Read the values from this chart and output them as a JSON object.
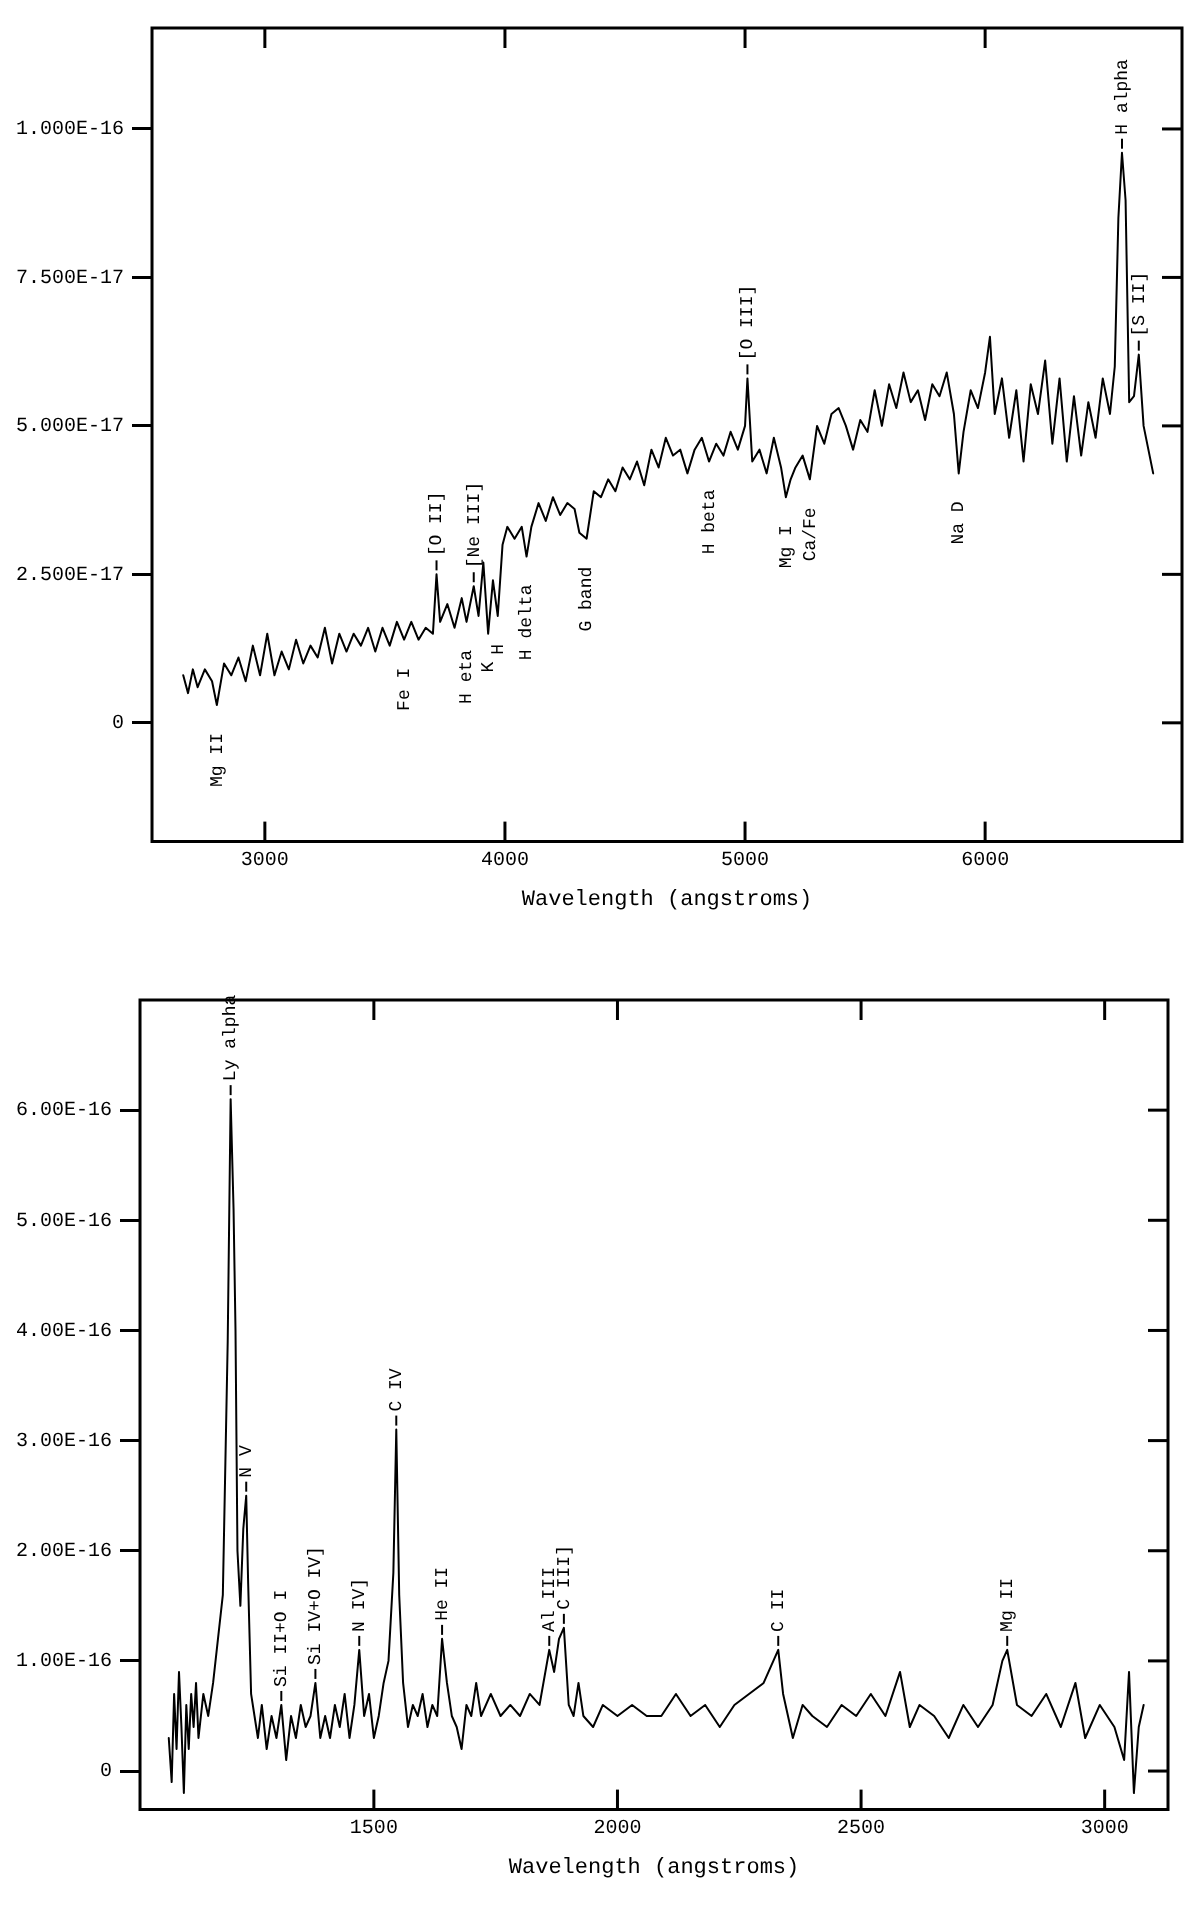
{
  "chart_data": [
    {
      "type": "line",
      "xlabel": "Wavelength (angstroms)",
      "xlim": [
        2530,
        6820
      ],
      "xticks": [
        3000,
        4000,
        5000,
        6000
      ],
      "ylim": [
        -2e-17,
        1.17e-16
      ],
      "yticks": [
        {
          "value": 0,
          "label": "0"
        },
        {
          "value": 2.5e-17,
          "label": "2.500E-17"
        },
        {
          "value": 5e-17,
          "label": "5.000E-17"
        },
        {
          "value": 7.5e-17,
          "label": "7.500E-17"
        },
        {
          "value": 1e-16,
          "label": "1.000E-16"
        }
      ],
      "grid": false,
      "legend": false,
      "series": [
        {
          "color": "#000000",
          "x": [
            2660,
            2680,
            2700,
            2720,
            2750,
            2780,
            2800,
            2830,
            2860,
            2890,
            2920,
            2950,
            2980,
            3010,
            3040,
            3070,
            3100,
            3130,
            3160,
            3190,
            3220,
            3250,
            3280,
            3310,
            3340,
            3370,
            3400,
            3430,
            3460,
            3490,
            3520,
            3550,
            3580,
            3610,
            3640,
            3670,
            3700,
            3715,
            3730,
            3760,
            3790,
            3820,
            3840,
            3870,
            3890,
            3910,
            3930,
            3950,
            3970,
            3990,
            4010,
            4040,
            4070,
            4090,
            4110,
            4140,
            4170,
            4200,
            4230,
            4260,
            4290,
            4310,
            4340,
            4370,
            4400,
            4430,
            4460,
            4490,
            4520,
            4550,
            4580,
            4610,
            4640,
            4670,
            4700,
            4730,
            4760,
            4790,
            4820,
            4850,
            4880,
            4910,
            4940,
            4970,
            5000,
            5010,
            5030,
            5060,
            5090,
            5120,
            5150,
            5170,
            5190,
            5210,
            5240,
            5270,
            5300,
            5330,
            5360,
            5390,
            5420,
            5450,
            5480,
            5510,
            5540,
            5570,
            5600,
            5630,
            5660,
            5690,
            5720,
            5750,
            5780,
            5810,
            5840,
            5870,
            5890,
            5910,
            5940,
            5970,
            6000,
            6020,
            6040,
            6070,
            6100,
            6130,
            6160,
            6190,
            6220,
            6250,
            6280,
            6310,
            6340,
            6370,
            6400,
            6430,
            6460,
            6490,
            6520,
            6540,
            6555,
            6570,
            6585,
            6600,
            6620,
            6640,
            6660,
            6680,
            6700
          ],
          "values": [
            8e-18,
            5e-18,
            9e-18,
            6e-18,
            9e-18,
            7e-18,
            3e-18,
            1e-17,
            8e-18,
            1.1e-17,
            7e-18,
            1.3e-17,
            8e-18,
            1.5e-17,
            8e-18,
            1.2e-17,
            9e-18,
            1.4e-17,
            1e-17,
            1.3e-17,
            1.1e-17,
            1.6e-17,
            1e-17,
            1.5e-17,
            1.2e-17,
            1.5e-17,
            1.3e-17,
            1.6e-17,
            1.2e-17,
            1.6e-17,
            1.3e-17,
            1.7e-17,
            1.4e-17,
            1.7e-17,
            1.4e-17,
            1.6e-17,
            1.5e-17,
            2.5e-17,
            1.7e-17,
            2e-17,
            1.6e-17,
            2.1e-17,
            1.7e-17,
            2.3e-17,
            1.8e-17,
            2.7e-17,
            1.5e-17,
            2.4e-17,
            1.8e-17,
            3e-17,
            3.3e-17,
            3.1e-17,
            3.3e-17,
            2.8e-17,
            3.3e-17,
            3.7e-17,
            3.4e-17,
            3.8e-17,
            3.5e-17,
            3.7e-17,
            3.6e-17,
            3.2e-17,
            3.1e-17,
            3.9e-17,
            3.8e-17,
            4.1e-17,
            3.9e-17,
            4.3e-17,
            4.1e-17,
            4.4e-17,
            4e-17,
            4.6e-17,
            4.3e-17,
            4.8e-17,
            4.5e-17,
            4.6e-17,
            4.2e-17,
            4.6e-17,
            4.8e-17,
            4.4e-17,
            4.7e-17,
            4.5e-17,
            4.9e-17,
            4.6e-17,
            5e-17,
            5.8e-17,
            4.4e-17,
            4.6e-17,
            4.2e-17,
            4.8e-17,
            4.3e-17,
            3.8e-17,
            4.1e-17,
            4.3e-17,
            4.5e-17,
            4.1e-17,
            5e-17,
            4.7e-17,
            5.2e-17,
            5.3e-17,
            5e-17,
            4.6e-17,
            5.1e-17,
            4.9e-17,
            5.6e-17,
            5e-17,
            5.7e-17,
            5.3e-17,
            5.9e-17,
            5.4e-17,
            5.6e-17,
            5.1e-17,
            5.7e-17,
            5.5e-17,
            5.9e-17,
            5.2e-17,
            4.2e-17,
            4.9e-17,
            5.6e-17,
            5.3e-17,
            5.9e-17,
            6.5e-17,
            5.2e-17,
            5.8e-17,
            4.8e-17,
            5.6e-17,
            4.4e-17,
            5.7e-17,
            5.2e-17,
            6.1e-17,
            4.7e-17,
            5.8e-17,
            4.4e-17,
            5.5e-17,
            4.5e-17,
            5.4e-17,
            4.8e-17,
            5.8e-17,
            5.2e-17,
            6e-17,
            8.5e-17,
            9.6e-17,
            8.8e-17,
            5.4e-17,
            5.5e-17,
            6.2e-17,
            5e-17,
            4.6e-17,
            4.2e-17
          ]
        }
      ],
      "annotations": [
        {
          "text": "Mg II",
          "x": 2800,
          "y": 3e-18
        },
        {
          "text": "Fe I",
          "x": 3580,
          "y": 1.4e-17
        },
        {
          "text": "[O II]",
          "x": 3715,
          "y": 2.5e-17
        },
        {
          "text": "H eta",
          "x": 3840,
          "y": 1.7e-17
        },
        {
          "text": "[Ne III]",
          "x": 3870,
          "y": 2.3e-17
        },
        {
          "text": "K",
          "x": 3930,
          "y": 1.5e-17
        },
        {
          "text": "H",
          "x": 3970,
          "y": 1.8e-17
        },
        {
          "text": "H delta",
          "x": 4090,
          "y": 2.8e-17
        },
        {
          "text": "G band",
          "x": 4340,
          "y": 3.1e-17
        },
        {
          "text": "H beta",
          "x": 4850,
          "y": 4.4e-17
        },
        {
          "text": "[O III]",
          "x": 5010,
          "y": 5.8e-17
        },
        {
          "text": "Mg I",
          "x": 5170,
          "y": 3.8e-17
        },
        {
          "text": "Ca/Fe",
          "x": 5270,
          "y": 4.1e-17
        },
        {
          "text": "Na D",
          "x": 5890,
          "y": 4.2e-17
        },
        {
          "text": "H alpha",
          "x": 6570,
          "y": 9.6e-17
        },
        {
          "text": "[S II]",
          "x": 6640,
          "y": 6.2e-17
        }
      ]
    },
    {
      "type": "line",
      "xlabel": "Wavelength (angstroms)",
      "xlim": [
        1020,
        3130
      ],
      "xticks": [
        1500,
        2000,
        2500,
        3000
      ],
      "ylim": [
        -3.5e-17,
        7e-16
      ],
      "yticks": [
        {
          "value": 0,
          "label": "0"
        },
        {
          "value": 1e-16,
          "label": "1.00E-16"
        },
        {
          "value": 2e-16,
          "label": "2.00E-16"
        },
        {
          "value": 3e-16,
          "label": "3.00E-16"
        },
        {
          "value": 4e-16,
          "label": "4.00E-16"
        },
        {
          "value": 5e-16,
          "label": "5.00E-16"
        },
        {
          "value": 6e-16,
          "label": "6.00E-16"
        }
      ],
      "grid": false,
      "legend": false,
      "series": [
        {
          "color": "#000000",
          "x": [
            1079,
            1085,
            1090,
            1095,
            1100,
            1105,
            1110,
            1115,
            1120,
            1125,
            1130,
            1135,
            1140,
            1150,
            1160,
            1170,
            1180,
            1190,
            1200,
            1206,
            1212,
            1216,
            1220,
            1226,
            1232,
            1238,
            1242,
            1248,
            1255,
            1262,
            1270,
            1280,
            1290,
            1300,
            1310,
            1320,
            1330,
            1340,
            1350,
            1360,
            1370,
            1380,
            1390,
            1400,
            1410,
            1420,
            1430,
            1440,
            1450,
            1460,
            1470,
            1480,
            1490,
            1500,
            1510,
            1520,
            1530,
            1540,
            1546,
            1552,
            1560,
            1570,
            1580,
            1590,
            1600,
            1610,
            1620,
            1630,
            1640,
            1650,
            1660,
            1670,
            1680,
            1690,
            1700,
            1710,
            1720,
            1740,
            1760,
            1780,
            1800,
            1820,
            1840,
            1860,
            1870,
            1880,
            1890,
            1900,
            1910,
            1920,
            1930,
            1950,
            1970,
            2000,
            2030,
            2060,
            2090,
            2120,
            2150,
            2180,
            2210,
            2240,
            2270,
            2300,
            2320,
            2330,
            2340,
            2360,
            2380,
            2400,
            2430,
            2460,
            2490,
            2520,
            2550,
            2580,
            2600,
            2620,
            2650,
            2680,
            2710,
            2740,
            2770,
            2790,
            2800,
            2820,
            2850,
            2880,
            2910,
            2940,
            2960,
            2990,
            3020,
            3040,
            3050,
            3060,
            3070,
            3080
          ],
          "values": [
            3e-17,
            -1e-17,
            7e-17,
            2e-17,
            9e-17,
            4e-17,
            -2e-17,
            6e-17,
            2e-17,
            7e-17,
            4e-17,
            8e-17,
            3e-17,
            7e-17,
            5e-17,
            8e-17,
            1.2e-16,
            1.6e-16,
            3.9e-16,
            6.1e-16,
            5.1e-16,
            4e-16,
            2e-16,
            1.5e-16,
            2.2e-16,
            2.5e-16,
            1.7e-16,
            7e-17,
            5e-17,
            3e-17,
            6e-17,
            2e-17,
            5e-17,
            3e-17,
            6e-17,
            1e-17,
            5e-17,
            3e-17,
            6e-17,
            4e-17,
            5e-17,
            8e-17,
            3e-17,
            5e-17,
            3e-17,
            6e-17,
            4e-17,
            7e-17,
            3e-17,
            6e-17,
            1.1e-16,
            5e-17,
            7e-17,
            3e-17,
            5e-17,
            8e-17,
            1e-16,
            1.8e-16,
            3.1e-16,
            1.6e-16,
            8e-17,
            4e-17,
            6e-17,
            5e-17,
            7e-17,
            4e-17,
            6e-17,
            5e-17,
            1.2e-16,
            8e-17,
            5e-17,
            4e-17,
            2e-17,
            6e-17,
            5e-17,
            8e-17,
            5e-17,
            7e-17,
            5e-17,
            6e-17,
            5e-17,
            7e-17,
            6e-17,
            1.1e-16,
            9e-17,
            1.2e-16,
            1.3e-16,
            6e-17,
            5e-17,
            8e-17,
            5e-17,
            4e-17,
            6e-17,
            5e-17,
            6e-17,
            5e-17,
            5e-17,
            7e-17,
            5e-17,
            6e-17,
            4e-17,
            6e-17,
            7e-17,
            8e-17,
            1e-16,
            1.1e-16,
            7e-17,
            3e-17,
            6e-17,
            5e-17,
            4e-17,
            6e-17,
            5e-17,
            7e-17,
            5e-17,
            9e-17,
            4e-17,
            6e-17,
            5e-17,
            3e-17,
            6e-17,
            4e-17,
            6e-17,
            1e-16,
            1.1e-16,
            6e-17,
            5e-17,
            7e-17,
            4e-17,
            8e-17,
            3e-17,
            6e-17,
            4e-17,
            1e-17,
            9e-17,
            -2e-17,
            4e-17,
            6e-17
          ]
        }
      ],
      "annotations": [
        {
          "text": "Ly alpha",
          "x": 1206,
          "y": 6.1e-16
        },
        {
          "text": "N V",
          "x": 1238,
          "y": 2.5e-16
        },
        {
          "text": "Si II+O I",
          "x": 1310,
          "y": 6e-17
        },
        {
          "text": "Si IV+O IV]",
          "x": 1380,
          "y": 8e-17
        },
        {
          "text": "N IV]",
          "x": 1470,
          "y": 1.1e-16
        },
        {
          "text": "C IV",
          "x": 1546,
          "y": 3.1e-16
        },
        {
          "text": "He II",
          "x": 1640,
          "y": 1.2e-16
        },
        {
          "text": "Al III",
          "x": 1860,
          "y": 1.1e-16
        },
        {
          "text": "C III]",
          "x": 1890,
          "y": 1.3e-16
        },
        {
          "text": "C II",
          "x": 2330,
          "y": 1.1e-16
        },
        {
          "text": "Mg II",
          "x": 2800,
          "y": 1.1e-16
        }
      ]
    }
  ]
}
